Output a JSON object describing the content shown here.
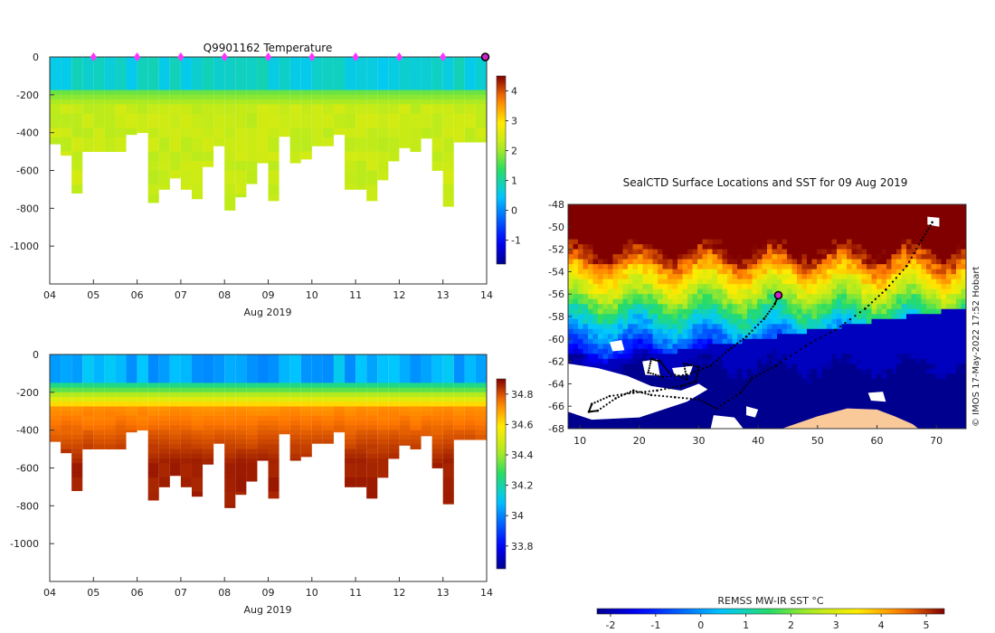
{
  "figure_title": "Q9901162  Temperature",
  "chart_data": [
    {
      "type": "heatmap",
      "name": "temperature-section",
      "title": "Q9901162  Temperature",
      "xlabel": "Aug 2019",
      "ylabel": "",
      "x_ticks": [
        "04",
        "05",
        "06",
        "07",
        "08",
        "09",
        "10",
        "11",
        "12",
        "13",
        "14"
      ],
      "xlim": [
        4,
        14
      ],
      "y_ticks": [
        0,
        -200,
        -400,
        -600,
        -800,
        -1000
      ],
      "ylim": [
        -1200,
        0
      ],
      "profile_days": [
        4.0,
        4.25,
        4.5,
        4.75,
        5.0,
        5.25,
        5.5,
        5.75,
        6.0,
        6.25,
        6.5,
        6.75,
        7.0,
        7.25,
        7.5,
        7.75,
        8.0,
        8.25,
        8.5,
        8.75,
        9.0,
        9.25,
        9.5,
        9.75,
        10.0,
        10.25,
        10.5,
        10.75,
        11.0,
        11.25,
        11.5,
        11.75,
        12.0,
        12.25,
        12.5,
        12.75,
        13.0,
        13.25,
        13.5,
        13.75,
        14.0
      ],
      "profile_max_depths": [
        -460,
        -520,
        -720,
        -500,
        -500,
        -500,
        -500,
        -410,
        -400,
        -770,
        -700,
        -640,
        -700,
        -750,
        -580,
        -470,
        -810,
        -740,
        -670,
        -560,
        -760,
        -420,
        -560,
        -540,
        -470,
        -470,
        -410,
        -700,
        -700,
        -760,
        -650,
        -550,
        -480,
        -500,
        -430,
        -600,
        -790,
        -450,
        -450,
        -450,
        -450
      ],
      "colorbar_label": "",
      "colorbar_ticks": [
        4,
        3,
        2,
        1,
        0,
        -1
      ],
      "colorbar_range": [
        -1.8,
        4.5
      ],
      "markers": [
        "05",
        "06",
        "07",
        "08",
        "09",
        "10",
        "11",
        "12",
        "13"
      ],
      "current_marker": "14"
    },
    {
      "type": "heatmap",
      "name": "salinity-section",
      "title": "",
      "xlabel": "Aug 2019",
      "x_ticks": [
        "04",
        "05",
        "06",
        "07",
        "08",
        "09",
        "10",
        "11",
        "12",
        "13",
        "14"
      ],
      "xlim": [
        4,
        14
      ],
      "y_ticks": [
        0,
        -200,
        -400,
        -600,
        -800,
        -1000
      ],
      "ylim": [
        -1200,
        0
      ],
      "colorbar_ticks": [
        34.8,
        34.6,
        34.4,
        34.2,
        34,
        33.8
      ],
      "colorbar_range": [
        33.65,
        34.9
      ]
    },
    {
      "type": "heatmap",
      "name": "sst-map",
      "title": "SealCTD Surface Locations and SST for 09 Aug 2019",
      "x_ticks": [
        10,
        20,
        30,
        40,
        50,
        60,
        70
      ],
      "xlim": [
        8,
        75
      ],
      "y_ticks": [
        -48,
        -50,
        -52,
        -54,
        -56,
        -58,
        -60,
        -62,
        -64,
        -66,
        -68
      ],
      "ylim": [
        -68,
        -48
      ],
      "track_points": [
        [
          69.3,
          -49.6
        ],
        [
          67.5,
          -51.2
        ],
        [
          65,
          -53.5
        ],
        [
          61.5,
          -55.6
        ],
        [
          58,
          -57.3
        ],
        [
          53,
          -59.2
        ],
        [
          48,
          -60.6
        ],
        [
          43,
          -62.4
        ],
        [
          39,
          -63.5
        ],
        [
          37,
          -64.8
        ],
        [
          33,
          -66.2
        ],
        [
          30,
          -65.4
        ],
        [
          26,
          -65.2
        ],
        [
          22,
          -65
        ],
        [
          19,
          -64.6
        ],
        [
          16,
          -65.3
        ],
        [
          13,
          -66.4
        ],
        [
          11.5,
          -66.5
        ],
        [
          12,
          -65.8
        ],
        [
          15,
          -65.1
        ],
        [
          19,
          -64.8
        ],
        [
          23,
          -64.6
        ],
        [
          27,
          -64.2
        ],
        [
          29.5,
          -63.8
        ],
        [
          30,
          -62.5
        ],
        [
          27.5,
          -62.2
        ],
        [
          28,
          -63.6
        ],
        [
          25,
          -63
        ],
        [
          23.5,
          -62
        ],
        [
          22,
          -61.8
        ],
        [
          21.5,
          -63
        ],
        [
          24,
          -63.4
        ],
        [
          28,
          -63.2
        ],
        [
          32,
          -62.4
        ],
        [
          35,
          -61
        ],
        [
          38,
          -59.8
        ],
        [
          41,
          -58.2
        ],
        [
          42.8,
          -56.9
        ],
        [
          43.4,
          -56.1
        ]
      ],
      "current_location": [
        43.4,
        -56.1
      ],
      "colorbar_label": "REMSS MW-IR SST °C",
      "colorbar_ticks": [
        -2,
        -1,
        0,
        1,
        2,
        3,
        4,
        5
      ],
      "colorbar_range": [
        -2.3,
        5.4
      ],
      "credit": "© IMOS 17-May-2022 17:52 Hobart"
    }
  ]
}
